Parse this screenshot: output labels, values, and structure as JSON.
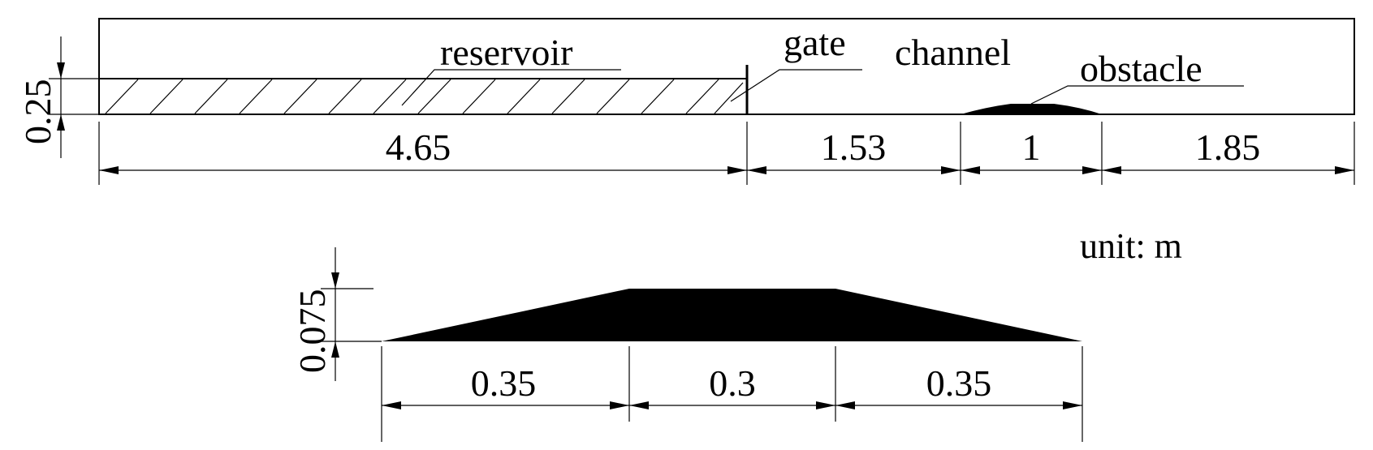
{
  "labels": {
    "reservoir": "reservoir",
    "gate": "gate",
    "channel": "channel",
    "obstacle": "obstacle",
    "unit": "unit: m"
  },
  "dimensions": {
    "reservoir_length": "4.65",
    "gate_to_obstacle": "1.53",
    "obstacle_length": "1",
    "outlet_length": "1.85",
    "water_depth": "0.25",
    "obstacle_height": "0.075",
    "obstacle_left_slope": "0.35",
    "obstacle_top": "0.3",
    "obstacle_right_slope": "0.35"
  }
}
